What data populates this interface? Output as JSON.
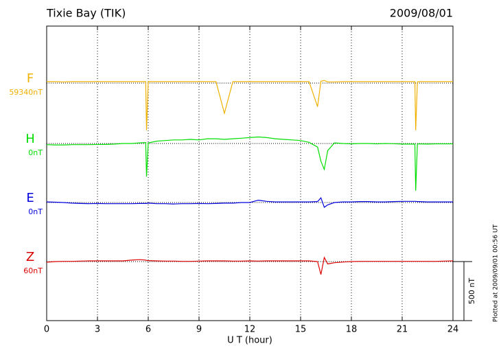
{
  "chart_data": {
    "type": "line",
    "title": "Tixie Bay (TIK)",
    "date": "2009/08/01",
    "xlabel": "U T (hour)",
    "footnote": "Plotted at 2009/09/01 00:56 UT",
    "scale_bar": {
      "value": 500,
      "label": "500 nT"
    },
    "xlim": [
      0,
      24
    ],
    "xticks": [
      0,
      3,
      6,
      9,
      12,
      15,
      18,
      21,
      24
    ],
    "grid": true,
    "x": [
      0,
      0.5,
      1,
      1.5,
      2,
      2.5,
      3,
      3.5,
      4,
      4.5,
      5,
      5.5,
      5.85,
      5.9,
      6,
      6.5,
      7,
      7.5,
      8,
      8.5,
      9,
      9.5,
      10,
      10.5,
      11,
      11.5,
      12,
      12.5,
      13,
      13.5,
      14,
      14.5,
      15,
      15.5,
      16,
      16.2,
      16.4,
      16.6,
      17,
      17.5,
      18,
      18.5,
      19,
      19.5,
      20,
      20.5,
      21,
      21.5,
      21.75,
      21.8,
      21.9,
      22,
      22.5,
      23,
      23.5,
      24
    ],
    "series": [
      {
        "name": "F",
        "color": "#f0b000",
        "baseline": {
          "value": 59340,
          "label": "59340nT"
        },
        "values": [
          59352,
          59352,
          59350,
          59352,
          59352,
          59352,
          59352,
          59352,
          59352,
          59352,
          59352,
          59352,
          59352,
          58940,
          59352,
          59352,
          59352,
          59352,
          59352,
          59352,
          59352,
          59352,
          59352,
          59085,
          59352,
          59352,
          59352,
          59352,
          59352,
          59352,
          59352,
          59352,
          59352,
          59352,
          59140,
          59355,
          59362,
          59350,
          59350,
          59352,
          59352,
          59352,
          59352,
          59352,
          59352,
          59352,
          59352,
          59352,
          59352,
          58940,
          59350,
          59352,
          59352,
          59352,
          59352,
          59352
        ]
      },
      {
        "name": "H",
        "color": "#00dd00",
        "baseline": {
          "value": 0,
          "label": "0nT"
        },
        "values": [
          -10,
          -12,
          -12,
          -10,
          -10,
          -10,
          -8,
          -8,
          -5,
          0,
          0,
          5,
          8,
          -280,
          5,
          20,
          25,
          30,
          30,
          35,
          30,
          40,
          40,
          35,
          40,
          45,
          50,
          55,
          50,
          40,
          35,
          30,
          25,
          10,
          -30,
          -150,
          -220,
          -60,
          5,
          0,
          -3,
          0,
          0,
          -3,
          0,
          -2,
          -5,
          -5,
          -5,
          -400,
          -5,
          -3,
          -5,
          -3,
          -3,
          -3
        ]
      },
      {
        "name": "E",
        "color": "#0000dd",
        "baseline": {
          "value": 0,
          "label": "0nT"
        },
        "values": [
          5,
          3,
          0,
          -5,
          -8,
          -10,
          -8,
          -10,
          -10,
          -10,
          -10,
          -8,
          -8,
          -8,
          -5,
          -10,
          -10,
          -12,
          -10,
          -10,
          -8,
          -10,
          -8,
          -5,
          -5,
          0,
          0,
          20,
          10,
          5,
          5,
          5,
          5,
          5,
          8,
          40,
          -40,
          -20,
          0,
          5,
          5,
          8,
          8,
          5,
          5,
          8,
          10,
          10,
          10,
          10,
          8,
          8,
          5,
          5,
          5,
          5
        ]
      },
      {
        "name": "Z",
        "color": "#dd0000",
        "baseline": {
          "value": 60,
          "label": "60nT"
        },
        "values": [
          55,
          60,
          62,
          62,
          64,
          66,
          66,
          66,
          66,
          66,
          72,
          76,
          72,
          70,
          68,
          66,
          64,
          64,
          62,
          62,
          64,
          66,
          66,
          66,
          64,
          64,
          66,
          64,
          66,
          66,
          66,
          66,
          66,
          66,
          60,
          -50,
          95,
          40,
          50,
          56,
          60,
          62,
          62,
          62,
          62,
          62,
          62,
          62,
          62,
          62,
          62,
          62,
          62,
          62,
          64,
          66
        ]
      }
    ]
  }
}
